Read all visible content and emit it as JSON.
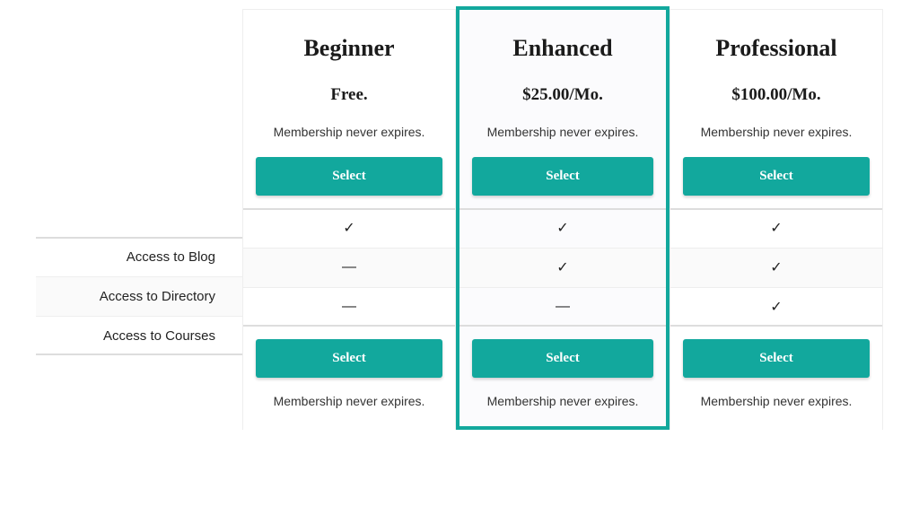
{
  "colors": {
    "accent": "#12a89d",
    "text_dark": "#1b1b1b",
    "border_light": "#eeeeee",
    "border_strong": "#dddddd",
    "row_alt_bg": "#fafafa",
    "featured_bg": "#fbfbfd"
  },
  "glyphs": {
    "check": "✓",
    "dash": "—"
  },
  "features": [
    {
      "label": "Access to Blog"
    },
    {
      "label": "Access to Directory"
    },
    {
      "label": "Access to Courses"
    }
  ],
  "plans": [
    {
      "name": "Beginner",
      "price": "Free.",
      "expiration": "Membership never expires.",
      "button": "Select",
      "featured": false,
      "values": [
        "✓",
        "—",
        "—"
      ],
      "footer_expiration": "Membership never expires."
    },
    {
      "name": "Enhanced",
      "price": "$25.00/Mo.",
      "expiration": "Membership never expires.",
      "button": "Select",
      "featured": true,
      "values": [
        "✓",
        "✓",
        "—"
      ],
      "footer_expiration": "Membership never expires."
    },
    {
      "name": "Professional",
      "price": "$100.00/Mo.",
      "expiration": "Membership never expires.",
      "button": "Select",
      "featured": false,
      "values": [
        "✓",
        "✓",
        "✓"
      ],
      "footer_expiration": "Membership never expires."
    }
  ]
}
